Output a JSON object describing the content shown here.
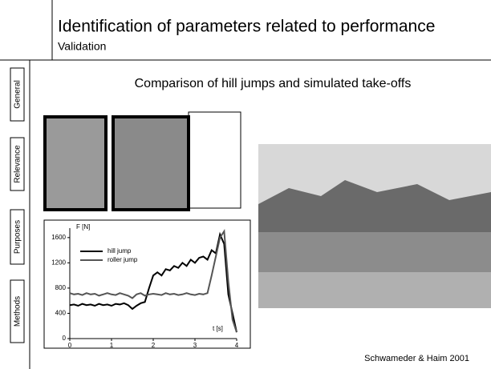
{
  "header": {
    "title": "Identification of parameters related to performance",
    "subtitle": "Validation"
  },
  "sidebar": {
    "tabs": [
      "General",
      "Relevance",
      "Purposes",
      "Methods"
    ]
  },
  "heading": "Comparison of hill jumps and simulated take-offs",
  "citation": "Schwameder & Haim 2001",
  "chart_data": {
    "type": "line",
    "y_label": "F [N]",
    "x_label": "t [s]",
    "x": [
      0,
      0.1,
      0.2,
      0.3,
      0.4,
      0.5,
      0.6,
      0.7,
      0.8,
      0.9,
      1,
      1.1,
      1.2,
      1.3,
      1.4,
      1.5,
      1.6,
      1.7,
      1.8,
      1.9,
      2,
      2.1,
      2.2,
      2.3,
      2.4,
      2.5,
      2.6,
      2.7,
      2.8,
      2.9,
      3,
      3.1,
      3.2,
      3.3,
      3.4,
      3.5,
      3.6,
      3.7,
      3.8,
      3.9,
      4
    ],
    "series": [
      {
        "name": "hill jump",
        "color": "#000000",
        "values": [
          530,
          540,
          520,
          550,
          530,
          540,
          520,
          550,
          530,
          540,
          520,
          550,
          540,
          560,
          530,
          470,
          520,
          560,
          580,
          800,
          1000,
          1050,
          1000,
          1100,
          1080,
          1150,
          1120,
          1200,
          1150,
          1250,
          1200,
          1280,
          1300,
          1250,
          1400,
          1350,
          1650,
          1500,
          700,
          400,
          100
        ]
      },
      {
        "name": "roller jump",
        "color": "#555555",
        "values": [
          720,
          700,
          710,
          690,
          720,
          700,
          710,
          680,
          700,
          720,
          700,
          690,
          720,
          700,
          680,
          640,
          700,
          720,
          680,
          700,
          710,
          700,
          690,
          720,
          700,
          710,
          690,
          700,
          720,
          700,
          690,
          710,
          700,
          720,
          1000,
          1300,
          1600,
          1700,
          900,
          300,
          100
        ]
      }
    ],
    "xlim": [
      0,
      4
    ],
    "ylim": [
      0,
      1750
    ],
    "xticks": [
      0,
      1,
      2,
      3,
      4
    ],
    "yticks": [
      0,
      400,
      800,
      1200,
      1600
    ],
    "grid": false
  }
}
